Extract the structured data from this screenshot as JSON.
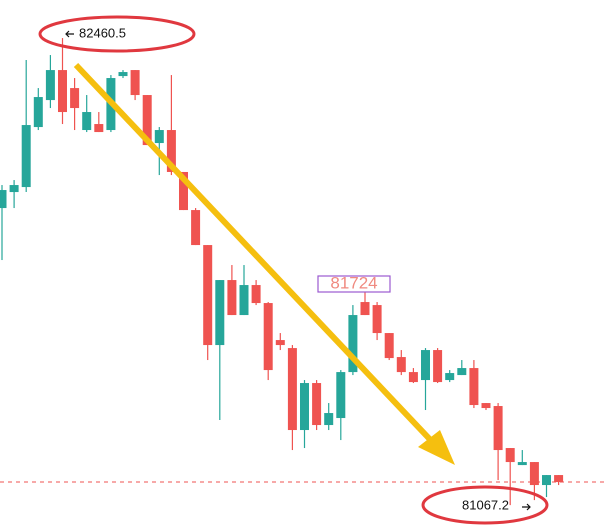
{
  "chart_data": {
    "type": "candlestick",
    "up_color": "#26a69a",
    "down_color": "#ef5350",
    "ylim": [
      80993,
      82574
    ],
    "open": [
      81953.4,
      82001.1,
      82016.0,
      82195.0,
      82275.5,
      82365.0,
      82311.3,
      82186.1,
      82204.0,
      82186.1,
      82347.1,
      82365.0,
      82290.5,
      82147.3,
      82186.1,
      82061.0,
      81947.4,
      81843.0,
      81544.7,
      81738.6,
      81634.2,
      81723.7,
      81670.0,
      81559.6,
      81535.7,
      81291.2,
      81431.4,
      81306.1,
      81327.0,
      81464.1,
      81673.0,
      81664.0,
      81580.5,
      81508.9,
      81464.1,
      81440.3,
      81529.8,
      81440.3,
      81455.2,
      81476.1,
      81371.7,
      81362.8,
      81237.5,
      81186.7,
      81195.7,
      81127.1,
      81156.9
    ],
    "high": [
      82022.0,
      82036.9,
      82394.9,
      82311.3,
      82409.8,
      82460.5,
      82341.2,
      82290.5,
      82239.8,
      82350.1,
      82365.0,
      82365.0,
      82290.5,
      82195.0,
      82350.1,
      82061.0,
      81953.4,
      81843.0,
      81738.6,
      81783.4,
      81783.4,
      81738.6,
      81673.0,
      81580.5,
      81544.7,
      81440.3,
      81440.3,
      81371.7,
      81470.1,
      81664.0,
      81723.7,
      81673.0,
      81580.5,
      81529.8,
      81476.1,
      81535.7,
      81535.7,
      81470.1,
      81500.0,
      81500.0,
      81371.7,
      81371.7,
      81237.5,
      81231.5,
      81195.7,
      81156.9,
      81156.9
    ],
    "low": [
      81798.3,
      81953.4,
      82001.1,
      82186.1,
      82251.7,
      82204.0,
      82186.1,
      82180.1,
      82180.1,
      82180.1,
      82341.2,
      82275.5,
      82141.3,
      82051.8,
      82051.8,
      81947.4,
      81843.0,
      81500.0,
      81321.0,
      81634.2,
      81634.2,
      81664.0,
      81440.3,
      81529.8,
      81231.5,
      81237.5,
      81291.2,
      81291.2,
      81261.3,
      81455.2,
      81634.2,
      81559.6,
      81500.0,
      81455.2,
      81431.4,
      81350.9,
      81431.4,
      81434.3,
      81455.2,
      81356.8,
      81350.9,
      81142.0,
      81067.2,
      81186.7,
      81082.2,
      81091.3,
      81127.1
    ],
    "close": [
      82007.1,
      82022.0,
      82201.0,
      82284.5,
      82365.0,
      82239.8,
      82251.7,
      82239.8,
      82180.1,
      82341.2,
      82359.1,
      82290.5,
      82141.3,
      82186.1,
      82061.0,
      81947.4,
      81843.0,
      81544.7,
      81738.6,
      81634.2,
      81723.7,
      81670.0,
      81470.1,
      81544.7,
      81291.2,
      81431.4,
      81306.1,
      81341.9,
      81464.1,
      81634.2,
      81634.2,
      81580.5,
      81505.9,
      81464.1,
      81434.3,
      81529.8,
      81434.3,
      81461.2,
      81476.1,
      81365.8,
      81356.8,
      81231.5,
      81195.7,
      81195.7,
      81127.1,
      81156.9,
      81136.0
    ],
    "price_line": 81136.0,
    "price_line_color": "#ef5350",
    "high_label": "82460.5",
    "low_label": "81067.2",
    "marker_label": "81724"
  }
}
